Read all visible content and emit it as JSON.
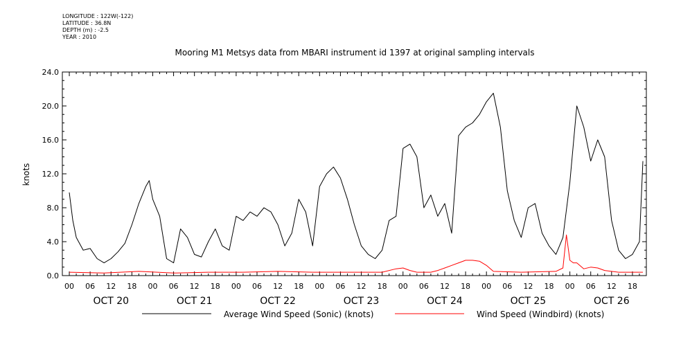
{
  "meta": {
    "longitude": "LONGITUDE : 122W(-122)",
    "latitude": "LATITUDE : 36.8N",
    "depth": "DEPTH (m) : -2.5",
    "year": "YEAR : 2010"
  },
  "chart_data": {
    "type": "line",
    "title": "Mooring M1 Metsys data from MBARI instrument id 1397 at original sampling intervals",
    "ylabel": "knots",
    "xlabel": "",
    "ylim": [
      0,
      24
    ],
    "yticks": [
      "0.0",
      "4.0",
      "8.0",
      "12.0",
      "16.0",
      "20.0",
      "24.0"
    ],
    "xlim_hours": [
      -2,
      166
    ],
    "hour_tick_labels": [
      "00",
      "06",
      "12",
      "18"
    ],
    "day_labels": [
      "OCT 20",
      "OCT 21",
      "OCT 22",
      "OCT 23",
      "OCT 24",
      "OCT 25",
      "OCT 26"
    ],
    "grid": false,
    "legend_position": "bottom",
    "colors": {
      "sonic": "#000000",
      "windbird": "#ff0000"
    },
    "series": [
      {
        "name": "Average Wind Speed (Sonic) (knots)",
        "color": "#000000",
        "x_hours": [
          0,
          1,
          2,
          4,
          6,
          8,
          10,
          12,
          14,
          16,
          18,
          20,
          22,
          23,
          24,
          26,
          28,
          30,
          32,
          34,
          36,
          38,
          40,
          42,
          44,
          46,
          48,
          50,
          52,
          54,
          56,
          58,
          60,
          62,
          64,
          66,
          68,
          70,
          72,
          74,
          76,
          78,
          80,
          82,
          84,
          86,
          88,
          90,
          92,
          94,
          96,
          98,
          100,
          102,
          104,
          106,
          108,
          110,
          112,
          114,
          116,
          118,
          120,
          122,
          124,
          126,
          128,
          130,
          132,
          134,
          136,
          138,
          140,
          142,
          144,
          146,
          148,
          150,
          152,
          154,
          156,
          158,
          160,
          162,
          164,
          165
        ],
        "values": [
          9.8,
          6.5,
          4.5,
          3.0,
          3.2,
          2.0,
          1.5,
          2.0,
          2.8,
          3.8,
          6.0,
          8.5,
          10.5,
          11.2,
          9.0,
          7.0,
          2.0,
          1.5,
          5.5,
          4.5,
          2.5,
          2.2,
          4.0,
          5.5,
          3.5,
          3.0,
          7.0,
          6.5,
          7.5,
          7.0,
          8.0,
          7.5,
          6.0,
          3.5,
          5.0,
          9.0,
          7.5,
          3.5,
          10.5,
          12.0,
          12.8,
          11.5,
          9.0,
          6.0,
          3.5,
          2.5,
          2.0,
          3.0,
          6.5,
          7.0,
          15.0,
          15.5,
          14.0,
          8.0,
          9.5,
          7.0,
          8.5,
          5.0,
          16.5,
          17.5,
          18.0,
          19.0,
          20.5,
          21.5,
          17.5,
          10.0,
          6.5,
          4.5,
          8.0,
          8.5,
          5.0,
          3.5,
          2.5,
          4.5,
          11.0,
          20.0,
          17.5,
          13.5,
          16.0,
          14.0,
          6.5,
          3.0,
          2.0,
          2.5,
          4.0,
          13.5
        ]
      },
      {
        "name": "Wind Speed (Windbird) (knots)",
        "color": "#ff0000",
        "x_hours": [
          0,
          10,
          20,
          30,
          40,
          50,
          60,
          70,
          80,
          90,
          94,
          96,
          98,
          100,
          102,
          104,
          106,
          108,
          110,
          112,
          114,
          116,
          118,
          120,
          122,
          130,
          140,
          142,
          143,
          144,
          145,
          146,
          148,
          150,
          152,
          154,
          156,
          158,
          160,
          165
        ],
        "values": [
          0.4,
          0.3,
          0.5,
          0.3,
          0.4,
          0.4,
          0.5,
          0.4,
          0.4,
          0.4,
          0.8,
          0.9,
          0.6,
          0.4,
          0.4,
          0.4,
          0.6,
          0.9,
          1.2,
          1.5,
          1.8,
          1.8,
          1.7,
          1.2,
          0.5,
          0.4,
          0.5,
          0.9,
          4.8,
          1.8,
          1.5,
          1.5,
          0.8,
          1.0,
          0.9,
          0.6,
          0.5,
          0.4,
          0.4,
          0.4
        ]
      }
    ]
  }
}
